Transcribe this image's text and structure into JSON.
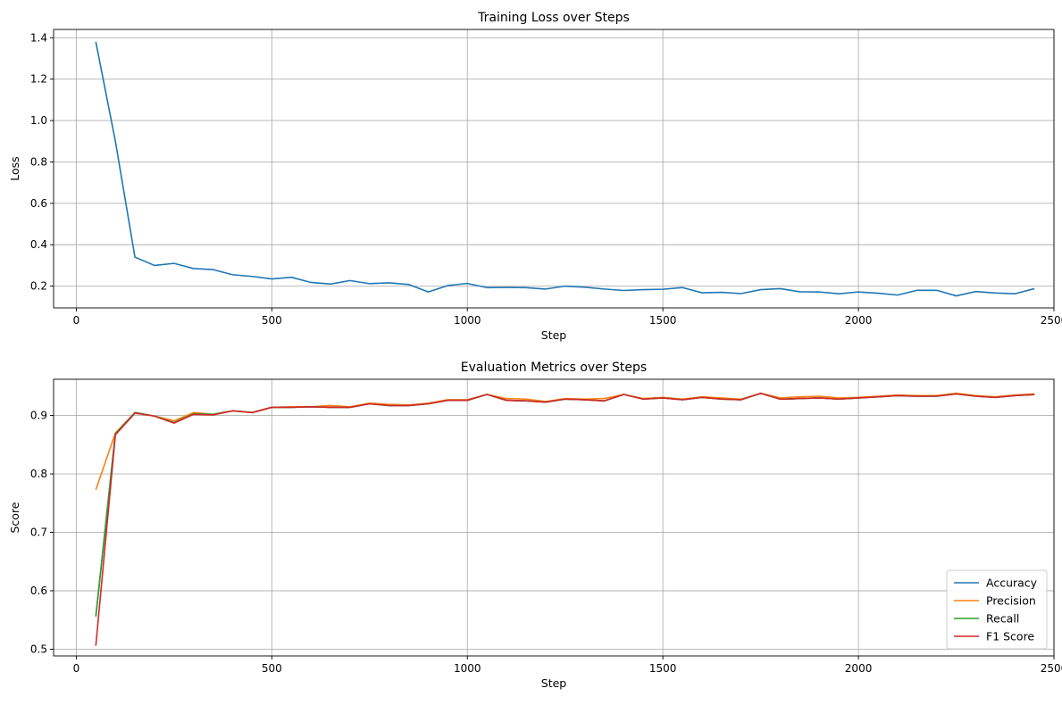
{
  "chart_data": [
    {
      "type": "line",
      "title": "Training Loss over Steps",
      "xlabel": "Step",
      "ylabel": "Loss",
      "xlim": [
        -58,
        2500
      ],
      "ylim": [
        0.095,
        1.44
      ],
      "xticks": [
        0,
        500,
        1000,
        1500,
        2000,
        2500
      ],
      "yticks": [
        0.2,
        0.4,
        0.6,
        0.8,
        1.0,
        1.2,
        1.4
      ],
      "ytick_labels": [
        "0.2",
        "0.4",
        "0.6",
        "0.8",
        "1.0",
        "1.2",
        "1.4"
      ],
      "grid": true,
      "legend": null,
      "x": [
        50,
        100,
        150,
        200,
        250,
        300,
        350,
        400,
        450,
        500,
        550,
        600,
        650,
        700,
        750,
        800,
        850,
        900,
        950,
        1000,
        1050,
        1100,
        1150,
        1200,
        1250,
        1300,
        1350,
        1400,
        1450,
        1500,
        1550,
        1600,
        1650,
        1700,
        1750,
        1800,
        1850,
        1900,
        1950,
        2000,
        2050,
        2100,
        2150,
        2200,
        2250,
        2300,
        2350,
        2400,
        2450
      ],
      "series": [
        {
          "color": "#1f77b4",
          "values": [
            1.38,
            0.9,
            0.34,
            0.3,
            0.31,
            0.285,
            0.28,
            0.255,
            0.247,
            0.235,
            0.243,
            0.218,
            0.21,
            0.227,
            0.212,
            0.216,
            0.208,
            0.172,
            0.203,
            0.213,
            0.193,
            0.194,
            0.193,
            0.186,
            0.2,
            0.195,
            0.186,
            0.179,
            0.183,
            0.185,
            0.193,
            0.168,
            0.17,
            0.164,
            0.183,
            0.188,
            0.173,
            0.172,
            0.163,
            0.172,
            0.166,
            0.157,
            0.18,
            0.18,
            0.153,
            0.174,
            0.167,
            0.163,
            0.188
          ]
        }
      ]
    },
    {
      "type": "line",
      "title": "Evaluation Metrics over Steps",
      "xlabel": "Step",
      "ylabel": "Score",
      "xlim": [
        -58,
        2500
      ],
      "ylim": [
        0.4885,
        0.962
      ],
      "xticks": [
        0,
        500,
        1000,
        1500,
        2000,
        2500
      ],
      "yticks": [
        0.5,
        0.6,
        0.7,
        0.8,
        0.9
      ],
      "ytick_labels": [
        "0.5",
        "0.6",
        "0.7",
        "0.8",
        "0.9"
      ],
      "grid": true,
      "legend": "lower-right",
      "x": [
        50,
        100,
        150,
        200,
        250,
        300,
        350,
        400,
        450,
        500,
        550,
        600,
        650,
        700,
        750,
        800,
        850,
        900,
        950,
        1000,
        1050,
        1100,
        1150,
        1200,
        1250,
        1300,
        1350,
        1400,
        1450,
        1500,
        1550,
        1600,
        1650,
        1700,
        1750,
        1800,
        1850,
        1900,
        1950,
        2000,
        2050,
        2100,
        2150,
        2200,
        2250,
        2300,
        2350,
        2400,
        2450
      ],
      "series": [
        {
          "name": "Accuracy",
          "color": "#1f77b4",
          "values": [
            0.556,
            0.869,
            0.905,
            0.899,
            0.888,
            0.903,
            0.902,
            0.908,
            0.905,
            0.914,
            0.914,
            0.915,
            0.914,
            0.914,
            0.92,
            0.917,
            0.917,
            0.92,
            0.926,
            0.926,
            0.936,
            0.926,
            0.925,
            0.923,
            0.928,
            0.927,
            0.925,
            0.936,
            0.928,
            0.93,
            0.927,
            0.931,
            0.928,
            0.927,
            0.938,
            0.928,
            0.929,
            0.93,
            0.928,
            0.93,
            0.932,
            0.934,
            0.933,
            0.933,
            0.937,
            0.933,
            0.931,
            0.934,
            0.936
          ]
        },
        {
          "name": "Precision",
          "color": "#ff7f0e",
          "values": [
            0.773,
            0.87,
            0.905,
            0.899,
            0.891,
            0.905,
            0.902,
            0.908,
            0.905,
            0.914,
            0.915,
            0.915,
            0.917,
            0.915,
            0.921,
            0.919,
            0.918,
            0.921,
            0.927,
            0.927,
            0.936,
            0.929,
            0.928,
            0.924,
            0.929,
            0.928,
            0.929,
            0.936,
            0.929,
            0.931,
            0.928,
            0.932,
            0.93,
            0.928,
            0.938,
            0.93,
            0.932,
            0.933,
            0.93,
            0.931,
            0.933,
            0.935,
            0.934,
            0.934,
            0.938,
            0.934,
            0.932,
            0.935,
            0.937
          ]
        },
        {
          "name": "Recall",
          "color": "#2ca02c",
          "values": [
            0.556,
            0.869,
            0.905,
            0.899,
            0.888,
            0.903,
            0.902,
            0.908,
            0.905,
            0.914,
            0.914,
            0.915,
            0.914,
            0.914,
            0.92,
            0.917,
            0.917,
            0.92,
            0.926,
            0.926,
            0.936,
            0.926,
            0.925,
            0.923,
            0.928,
            0.927,
            0.925,
            0.936,
            0.928,
            0.93,
            0.927,
            0.931,
            0.928,
            0.927,
            0.938,
            0.928,
            0.929,
            0.93,
            0.928,
            0.93,
            0.932,
            0.934,
            0.933,
            0.933,
            0.937,
            0.933,
            0.931,
            0.934,
            0.936
          ]
        },
        {
          "name": "F1 Score",
          "color": "#d62728",
          "values": [
            0.506,
            0.867,
            0.904,
            0.899,
            0.887,
            0.902,
            0.901,
            0.908,
            0.905,
            0.914,
            0.914,
            0.915,
            0.914,
            0.914,
            0.92,
            0.917,
            0.917,
            0.92,
            0.926,
            0.926,
            0.936,
            0.926,
            0.925,
            0.923,
            0.928,
            0.927,
            0.925,
            0.936,
            0.928,
            0.93,
            0.927,
            0.931,
            0.928,
            0.927,
            0.938,
            0.928,
            0.929,
            0.93,
            0.928,
            0.93,
            0.932,
            0.934,
            0.933,
            0.933,
            0.937,
            0.933,
            0.931,
            0.934,
            0.936
          ]
        }
      ]
    }
  ]
}
